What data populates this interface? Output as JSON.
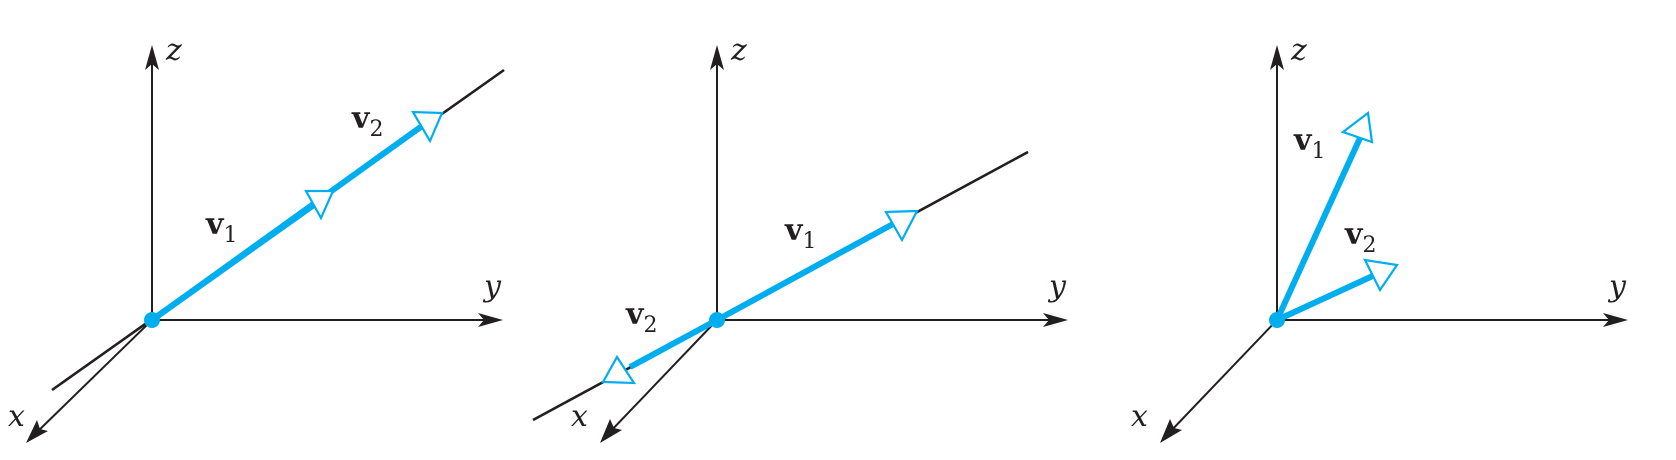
{
  "axes": {
    "x": "x",
    "y": "y",
    "z": "z"
  },
  "vectors": {
    "v1": {
      "symbol": "v",
      "subscript": "1"
    },
    "v2": {
      "symbol": "v",
      "subscript": "2"
    }
  },
  "colors": {
    "vector": "#00aeef",
    "axis": "#231f20"
  }
}
